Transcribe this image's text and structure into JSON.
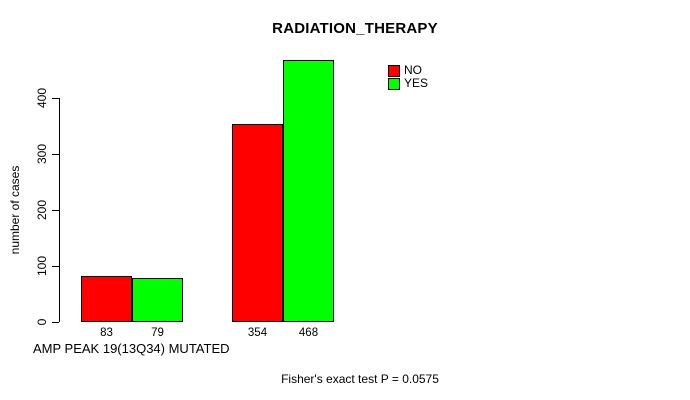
{
  "chart_data": {
    "type": "bar",
    "title": "RADIATION_THERAPY",
    "xlabel": "AMP PEAK 19(13Q34) MUTATED",
    "ylabel": "number of cases",
    "series": [
      {
        "name": "NO",
        "color": "#ff0000",
        "values": [
          83,
          354
        ]
      },
      {
        "name": "YES",
        "color": "#00ff00",
        "values": [
          79,
          468
        ]
      }
    ],
    "bar_value_labels": [
      "83",
      "79",
      "354",
      "468"
    ],
    "yticks": [
      0,
      100,
      200,
      300,
      400
    ],
    "ylim": [
      0,
      477
    ],
    "grid": false,
    "legend_position": "top-right",
    "annotation": "Fisher's exact test P = 0.0575"
  }
}
